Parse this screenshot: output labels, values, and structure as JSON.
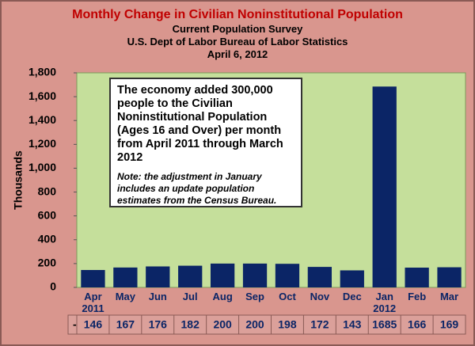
{
  "chart_data": {
    "type": "bar",
    "title": "Monthly Change in Civilian Noninstitutional Population",
    "subtitles": [
      "Current Population Survey",
      "U.S. Dept of Labor Bureau of Labor Statistics",
      "April 6, 2012"
    ],
    "y_label": "Thousands",
    "annotation": "The  economy added 300,000 people to the Civilian Noninstitutional Population (Ages 16 and Over) per month from April 2011 through March 2012",
    "note": "Note: the adjustment in January includes an update population estimates from the Census Bureau.",
    "categories": [
      "Apr 2011",
      "May",
      "Jun",
      "Jul",
      "Aug",
      "Sep",
      "Oct",
      "Nov",
      "Dec",
      "Jan 2012",
      "Feb",
      "Mar"
    ],
    "series": [
      {
        "name": "-",
        "color": "#0b2566",
        "values": [
          146,
          167,
          176,
          182,
          200,
          200,
          198,
          172,
          143,
          1685,
          166,
          169
        ]
      }
    ],
    "ylim": [
      0,
      1800
    ],
    "yticks": [
      0,
      200,
      400,
      600,
      800,
      {
        "value": 1000,
        "label": "1,000"
      },
      {
        "value": 1200,
        "label": "1,200"
      },
      {
        "value": 1400,
        "label": "1,400"
      },
      {
        "value": 1600,
        "label": "1,600"
      },
      {
        "value": 1800,
        "label": "1,800"
      }
    ],
    "grid": false,
    "data_table": true
  }
}
